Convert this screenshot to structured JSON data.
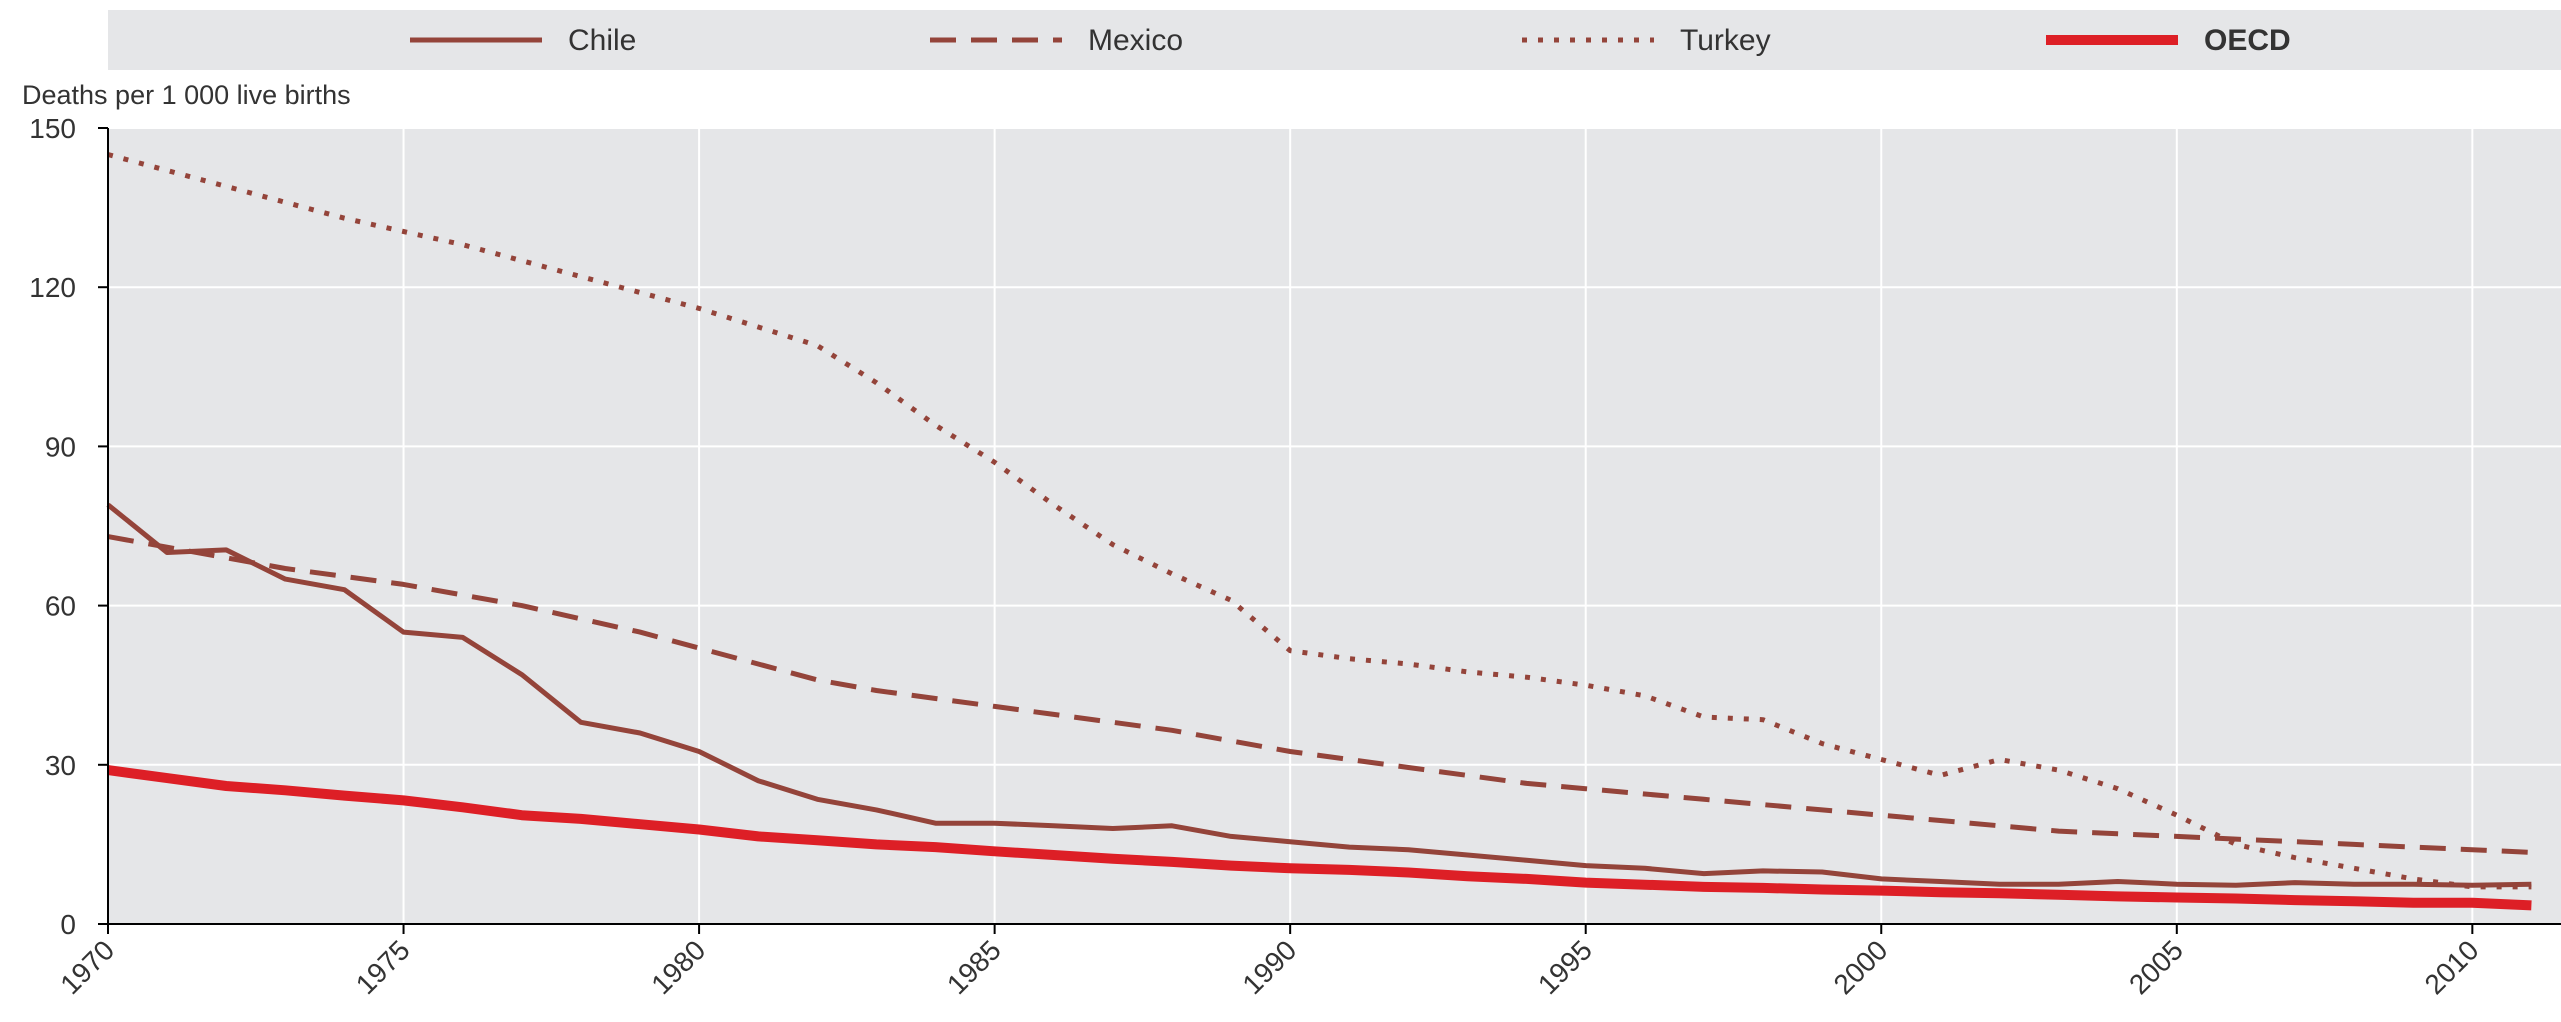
{
  "chart_data": {
    "type": "line",
    "title": "",
    "xlabel": "",
    "ylabel": "Deaths per 1 000 live births",
    "xlim": [
      1970,
      2011.5
    ],
    "ylim": [
      0,
      150
    ],
    "xticks": [
      1970,
      1975,
      1980,
      1985,
      1990,
      1995,
      2000,
      2005,
      2010
    ],
    "yticks": [
      0,
      30,
      60,
      90,
      120,
      150
    ],
    "grid": true,
    "legend_position": "top",
    "x": [
      1970,
      1971,
      1972,
      1973,
      1974,
      1975,
      1976,
      1977,
      1978,
      1979,
      1980,
      1981,
      1982,
      1983,
      1984,
      1985,
      1986,
      1987,
      1988,
      1989,
      1990,
      1991,
      1992,
      1993,
      1994,
      1995,
      1996,
      1997,
      1998,
      1999,
      2000,
      2001,
      2002,
      2003,
      2004,
      2005,
      2006,
      2007,
      2008,
      2009,
      2010,
      2011
    ],
    "series": [
      {
        "name": "Chile",
        "color": "#94443a",
        "style": "solid",
        "values": [
          79,
          70,
          70.5,
          65,
          63,
          55,
          54,
          47,
          38,
          36,
          32.5,
          27,
          23.5,
          21.5,
          19,
          19,
          18.5,
          18,
          18.5,
          16.5,
          15.5,
          14.5,
          14,
          13,
          12,
          11,
          10.5,
          9.5,
          10,
          9.8,
          8.5,
          8,
          7.5,
          7.5,
          8,
          7.5,
          7.3,
          7.8,
          7.5,
          7.5,
          7.3,
          7.5
        ]
      },
      {
        "name": "Mexico",
        "color": "#94443a",
        "style": "dashed",
        "values": [
          73,
          71,
          69,
          67,
          65.5,
          64,
          62,
          60,
          57.5,
          55,
          52,
          49,
          46,
          44,
          42.5,
          41,
          39.5,
          38,
          36.5,
          34.5,
          32.5,
          31,
          29.5,
          28,
          26.5,
          25.5,
          24.5,
          23.5,
          22.5,
          21.5,
          20.5,
          19.5,
          18.5,
          17.5,
          17,
          16.5,
          16,
          15.5,
          15,
          14.5,
          14,
          13.5
        ]
      },
      {
        "name": "Turkey",
        "color": "#94443a",
        "style": "dotted",
        "values": [
          145,
          142,
          139,
          136,
          133,
          130.5,
          128,
          125,
          122,
          119,
          116,
          112.5,
          109,
          102,
          94,
          87,
          79,
          71.5,
          66,
          61,
          51.5,
          50,
          49,
          47.5,
          46.5,
          45,
          43,
          39,
          38.5,
          34,
          31,
          28,
          31,
          29,
          25.5,
          20.5,
          15,
          12.5,
          10.5,
          8.5,
          7,
          7
        ]
      },
      {
        "name": "OECD",
        "color": "#dd1f26",
        "style": "thick",
        "values": [
          29,
          27.5,
          26,
          25.2,
          24.2,
          23.3,
          22,
          20.5,
          19.8,
          18.8,
          17.8,
          16.5,
          15.8,
          15,
          14.5,
          13.7,
          13,
          12.3,
          11.7,
          11,
          10.5,
          10.2,
          9.7,
          9,
          8.5,
          7.8,
          7.4,
          7,
          6.8,
          6.5,
          6.3,
          6,
          5.8,
          5.5,
          5.2,
          5,
          4.8,
          4.5,
          4.3,
          4,
          4,
          3.5
        ]
      }
    ]
  }
}
